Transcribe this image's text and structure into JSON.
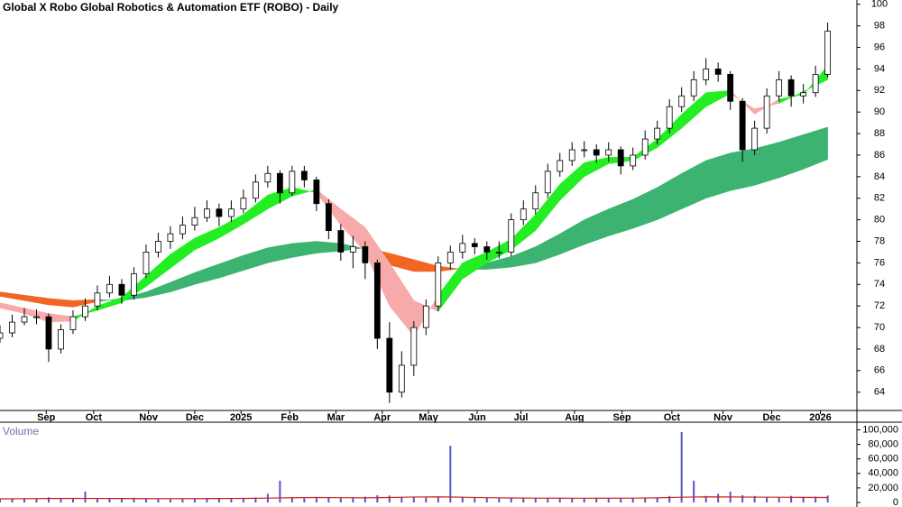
{
  "chart_data": [
    {
      "type": "candlestick",
      "title": "Global X Robo Global Robotics & Automation ETF (ROBO) - Daily",
      "xlim": [
        0,
        352
      ],
      "xticks": [
        {
          "value": 19,
          "label": "Sep"
        },
        {
          "value": 38.5,
          "label": "Oct"
        },
        {
          "value": 61,
          "label": "Nov"
        },
        {
          "value": 80,
          "label": "Dec"
        },
        {
          "value": 99,
          "label": "2025"
        },
        {
          "value": 119,
          "label": "Feb"
        },
        {
          "value": 138,
          "label": "Mar"
        },
        {
          "value": 157,
          "label": "Apr"
        },
        {
          "value": 176,
          "label": "May"
        },
        {
          "value": 196,
          "label": "Jun"
        },
        {
          "value": 214,
          "label": "Jul"
        },
        {
          "value": 236,
          "label": "Aug"
        },
        {
          "value": 255.5,
          "label": "Sep"
        },
        {
          "value": 276,
          "label": "Oct"
        },
        {
          "value": 297,
          "label": "Nov"
        },
        {
          "value": 317,
          "label": "Dec"
        },
        {
          "value": 337,
          "label": "2026"
        }
      ],
      "ylim": [
        62.3,
        100.4
      ],
      "yticks": [
        64,
        66,
        68,
        70,
        72,
        74,
        76,
        78,
        80,
        82,
        84,
        86,
        88,
        90,
        92,
        94,
        96,
        98,
        100
      ],
      "x": [
        0,
        5,
        10,
        15,
        20,
        25,
        30,
        35,
        40,
        45,
        50,
        55,
        60,
        65,
        70,
        75,
        80,
        85,
        90,
        95,
        100,
        105,
        110,
        115,
        120,
        125,
        130,
        135,
        140,
        145,
        150,
        155,
        160,
        165,
        170,
        175,
        180,
        185,
        190,
        195,
        200,
        205,
        210,
        215,
        220,
        225,
        230,
        235,
        240,
        245,
        250,
        255,
        260,
        265,
        270,
        275,
        280,
        285,
        290,
        295,
        300,
        305,
        310,
        315,
        320,
        325,
        330,
        335,
        340
      ],
      "open": [
        69,
        69.5,
        70.5,
        71,
        71,
        68,
        69.8,
        71,
        72,
        73.2,
        74,
        73,
        75,
        77,
        78,
        78.7,
        79.5,
        80.2,
        81,
        80.3,
        81,
        82,
        83.5,
        84.3,
        82.5,
        84.5,
        83.7,
        81.5,
        79,
        77,
        77.5,
        76,
        69,
        64,
        66.5,
        70,
        72,
        76,
        77,
        77.8,
        77.5,
        77,
        77,
        80,
        81,
        82.5,
        84.5,
        85.5,
        86.5,
        86.5,
        86,
        86.5,
        85,
        86,
        87.5,
        88.5,
        90.5,
        91.5,
        93,
        94,
        93.5,
        91,
        86.5,
        88.5,
        91.5,
        93,
        91.5,
        91.8,
        93.5
      ],
      "high": [
        70.2,
        71.2,
        71.8,
        71.7,
        71.3,
        70.3,
        71.6,
        72.7,
        73.9,
        74.8,
        74.5,
        75.6,
        77.7,
        78.8,
        79.4,
        80.3,
        81.2,
        81.8,
        81.5,
        81.8,
        82.8,
        84.2,
        85,
        84.6,
        85,
        85,
        84,
        81.9,
        79.6,
        78.5,
        78,
        76.3,
        70.5,
        67.8,
        70.6,
        72.6,
        76.6,
        77.6,
        78.6,
        78.3,
        78,
        78,
        80.6,
        81.8,
        83.2,
        85.2,
        86.2,
        87.2,
        87.3,
        87,
        87.2,
        86.8,
        86.7,
        88.3,
        89.2,
        91.2,
        92.3,
        93.8,
        95,
        94.6,
        93.8,
        91.3,
        89.2,
        92.2,
        93.8,
        93.4,
        92.6,
        94.3,
        98.3
      ],
      "low": [
        68.6,
        69.1,
        70.2,
        70.3,
        66.8,
        67.6,
        69.4,
        70.6,
        71.6,
        72.8,
        72.2,
        72.6,
        74.6,
        76.5,
        77.3,
        78.2,
        79,
        79.8,
        79.4,
        79.8,
        80.6,
        81.6,
        83,
        81.5,
        82.2,
        83,
        80.8,
        78.2,
        76.2,
        75.5,
        74.5,
        68,
        63,
        63.5,
        65.5,
        69.3,
        71.5,
        75.4,
        76.4,
        76.8,
        76.3,
        76.4,
        76.6,
        79.5,
        80.5,
        82,
        84,
        85,
        85.8,
        85.3,
        85.4,
        84.2,
        84.6,
        85.6,
        87,
        88,
        90,
        91,
        92.5,
        92.8,
        90.2,
        85.4,
        86,
        88,
        91,
        90.5,
        90.8,
        91.4,
        93.2
      ],
      "close": [
        69.5,
        70.5,
        71,
        71,
        68,
        69.8,
        71,
        72,
        73.2,
        74,
        73,
        75,
        77,
        78,
        78.7,
        79.5,
        80.2,
        81,
        80.3,
        81,
        82,
        83.5,
        84.3,
        82.5,
        84.5,
        83.7,
        81.5,
        79,
        77,
        77.5,
        76,
        69,
        64,
        66.5,
        70,
        72,
        76,
        77,
        77.8,
        77.5,
        77,
        77,
        80,
        81,
        82.5,
        84.5,
        85.5,
        86.5,
        86.5,
        86,
        86.5,
        85,
        86,
        87.5,
        88.5,
        90.5,
        91.5,
        93,
        94,
        93.5,
        91,
        86.5,
        88.5,
        91.5,
        93,
        91.5,
        91.8,
        93.5,
        97.5
      ],
      "up_color": "#ffffff",
      "down_color": "#000000",
      "band_x": [
        0,
        10,
        20,
        30,
        40,
        50,
        60,
        70,
        80,
        90,
        100,
        110,
        120,
        130,
        140,
        150,
        160,
        170,
        180,
        190,
        200,
        210,
        220,
        230,
        240,
        250,
        260,
        270,
        280,
        290,
        300,
        310,
        320,
        330,
        340
      ],
      "ribbons": [
        {
          "a": [
            72.9,
            72.5,
            72.1,
            71.9,
            72.4,
            72.7,
            73.3,
            74.2,
            75.1,
            75.9,
            76.7,
            77.4,
            77.8,
            78.0,
            77.8,
            77.3,
            75.8,
            75.2,
            75.2,
            75.5,
            76.0,
            76.6,
            77.5,
            78.7,
            80.0,
            81.0,
            81.9,
            83.0,
            84.3,
            85.5,
            86.2,
            86.6,
            87.2,
            87.9,
            88.6
          ],
          "b": [
            73.3,
            73.0,
            72.7,
            72.5,
            72.6,
            72.5,
            72.8,
            73.3,
            74.0,
            74.6,
            75.3,
            76.0,
            76.5,
            76.9,
            77.1,
            77.4,
            76.9,
            76.3,
            75.7,
            75.4,
            75.4,
            75.6,
            76.0,
            76.8,
            77.7,
            78.5,
            79.2,
            80.0,
            81.0,
            82.0,
            82.7,
            83.2,
            83.9,
            84.7,
            85.6
          ],
          "up_color": "#3cb371",
          "down_color": "#f26522"
        },
        {
          "a": [
            71.8,
            71.3,
            70.5,
            70.6,
            72.0,
            72.8,
            74.8,
            76.8,
            78.3,
            79.3,
            80.5,
            82.3,
            83.0,
            82.5,
            79.5,
            77.0,
            72.0,
            69.2,
            73.0,
            76.0,
            77.0,
            78.2,
            80.5,
            83.3,
            85.3,
            85.8,
            85.8,
            87.5,
            89.8,
            91.8,
            92.0,
            89.8,
            91.2,
            91.6,
            94.3
          ],
          "b": [
            72.3,
            71.8,
            71.3,
            71.0,
            71.6,
            72.3,
            73.8,
            75.5,
            77.2,
            78.3,
            79.6,
            81.0,
            82.2,
            82.8,
            81.0,
            79.3,
            76.0,
            72.5,
            71.5,
            74.5,
            76.0,
            77.2,
            79.0,
            81.8,
            84.0,
            85.2,
            85.5,
            86.7,
            88.5,
            90.5,
            91.7,
            90.3,
            90.8,
            91.9,
            93.0
          ],
          "up_color": "#22ee22",
          "down_color": "#f7aaaa"
        }
      ]
    },
    {
      "type": "bar",
      "title": "Volume",
      "xlim": [
        0,
        352
      ],
      "ylim": [
        0,
        108000
      ],
      "yticks": [
        0,
        {
          "value": 20000,
          "label": "20,000"
        },
        {
          "value": 40000,
          "label": "40,000"
        },
        {
          "value": 60000,
          "label": "60,000"
        },
        {
          "value": 80000,
          "label": "80,000"
        },
        {
          "value": 100000,
          "label": "100,000"
        }
      ],
      "x": [
        0,
        5,
        10,
        15,
        20,
        25,
        30,
        35,
        40,
        45,
        50,
        55,
        60,
        65,
        70,
        75,
        80,
        85,
        90,
        95,
        100,
        105,
        110,
        115,
        120,
        125,
        130,
        135,
        140,
        145,
        150,
        155,
        160,
        165,
        170,
        175,
        180,
        185,
        190,
        195,
        200,
        205,
        210,
        215,
        220,
        225,
        230,
        235,
        240,
        245,
        250,
        255,
        260,
        265,
        270,
        275,
        280,
        285,
        290,
        295,
        300,
        305,
        310,
        315,
        320,
        325,
        330,
        335,
        340
      ],
      "values": [
        5200,
        4800,
        6000,
        5500,
        7000,
        4900,
        5100,
        15000,
        6200,
        5800,
        5000,
        6500,
        6000,
        5400,
        5200,
        4800,
        5600,
        5900,
        5000,
        5300,
        6100,
        7000,
        12000,
        30000,
        6800,
        5800,
        6200,
        7500,
        6600,
        7200,
        8000,
        10000,
        9500,
        7800,
        7000,
        6500,
        6800,
        78000,
        8000,
        7000,
        6200,
        5800,
        6000,
        6400,
        5600,
        6000,
        5800,
        5400,
        6000,
        5600,
        6200,
        5800,
        6000,
        6400,
        7000,
        9000,
        97000,
        30000,
        9000,
        12000,
        15000,
        10000,
        9000,
        8000,
        7500,
        9000,
        7800,
        8000,
        9500
      ],
      "color": "#5555cc",
      "line_x": [
        0,
        10,
        20,
        30,
        40,
        50,
        60,
        70,
        80,
        90,
        100,
        110,
        120,
        130,
        140,
        150,
        160,
        170,
        180,
        190,
        200,
        210,
        220,
        230,
        240,
        250,
        260,
        270,
        280,
        290,
        300,
        310,
        320,
        330,
        340
      ],
      "line_values": [
        5000,
        5200,
        5400,
        5600,
        5500,
        5400,
        5300,
        5200,
        5300,
        5400,
        5600,
        6000,
        6500,
        6800,
        6600,
        6400,
        6800,
        7500,
        7800,
        7200,
        6600,
        6200,
        6000,
        5900,
        5800,
        5900,
        6000,
        6400,
        7200,
        7800,
        7600,
        7400,
        7200,
        7000,
        6800
      ],
      "line_color": "#cc2222"
    }
  ]
}
